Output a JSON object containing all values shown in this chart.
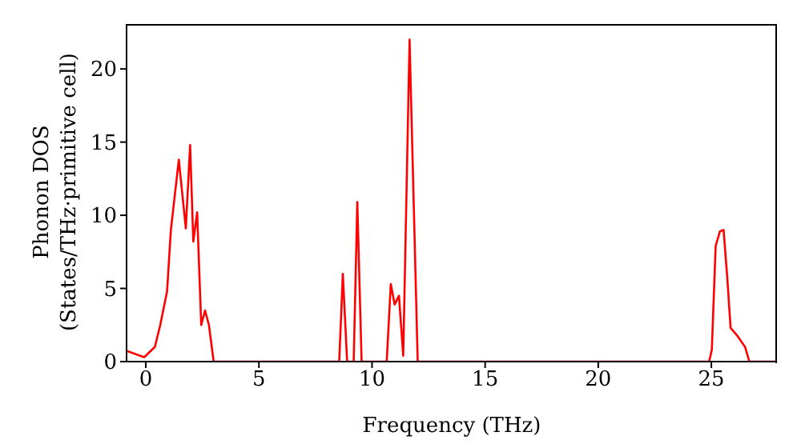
{
  "chart_data": {
    "type": "line",
    "xlabel": "Frequency (THz)",
    "ylabel": "Phonon DOS\n(States/THz·primitive cell)",
    "x": [
      -0.85,
      -0.78,
      -0.07,
      0.4,
      0.64,
      0.94,
      1.11,
      1.46,
      1.77,
      1.96,
      2.1,
      2.27,
      2.45,
      2.62,
      2.79,
      3.0,
      8.55,
      8.71,
      8.9,
      9.19,
      9.35,
      9.54,
      10.65,
      10.83,
      11.0,
      11.19,
      11.38,
      11.66,
      12.02,
      24.9,
      25.02,
      25.19,
      25.38,
      25.54,
      25.7,
      25.85,
      26.13,
      26.49,
      26.68,
      27.9
    ],
    "series": [
      {
        "color": "#ff0000",
        "values": [
          0.7,
          0.7,
          0.3,
          1.0,
          2.5,
          4.8,
          9,
          13.8,
          9.1,
          14.8,
          8.2,
          10.2,
          2.5,
          3.5,
          2.5,
          0,
          0,
          6.0,
          0,
          0,
          10.9,
          0,
          0,
          5.3,
          3.9,
          4.5,
          0.4,
          22.0,
          0,
          0,
          0.8,
          7.9,
          8.9,
          9.0,
          5.8,
          2.3,
          1.8,
          1.0,
          0,
          0
        ]
      }
    ],
    "xlim": [
      -0.85,
      27.9
    ],
    "ylim": [
      0,
      23.07
    ],
    "xticks": [
      0,
      5,
      10,
      15,
      20,
      25
    ],
    "yticks": [
      0,
      5,
      10,
      15,
      20
    ],
    "grid": false,
    "legend": false,
    "marker": "none",
    "line_style": "solid"
  }
}
